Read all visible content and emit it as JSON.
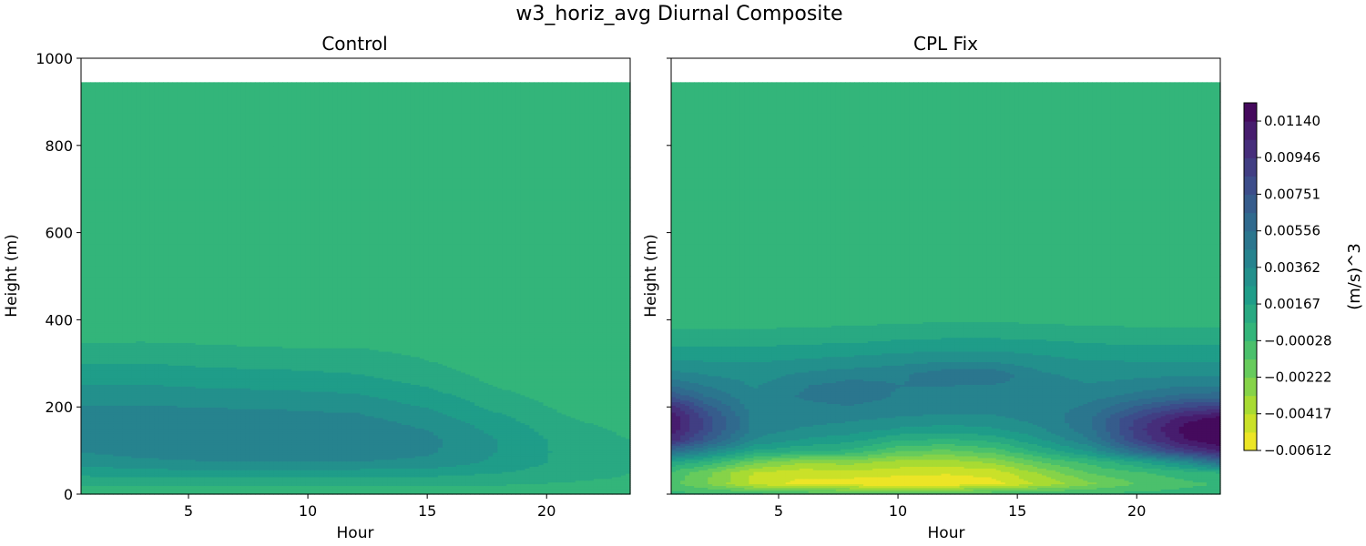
{
  "figure": {
    "title": "w3_horiz_avg Diurnal Composite",
    "colorbar_label": "(m/s)^3"
  },
  "chart_data": {
    "type": "heatmap",
    "colormap": "viridis_r",
    "colormap_stops": [
      "#fde725",
      "#b5de2b",
      "#6ece58",
      "#35b779",
      "#1f9e89",
      "#26828e",
      "#31688e",
      "#3e4989",
      "#482878",
      "#440154"
    ],
    "colorbar": {
      "min": -0.00612,
      "max": 0.01237,
      "tick_values": [
        -0.00612,
        -0.00417,
        -0.00222,
        -0.00028,
        0.00167,
        0.00362,
        0.00556,
        0.00751,
        0.00946,
        0.0114
      ],
      "tick_labels": [
        "−0.00612",
        "−0.00417",
        "−0.00222",
        "−0.00028",
        "0.00167",
        "0.00362",
        "0.00556",
        "0.00751",
        "0.00946",
        "0.01140"
      ]
    },
    "panels": [
      {
        "title": "Control",
        "xlabel": "Hour",
        "ylabel": "Height (m)",
        "xlim": [
          0.5,
          23.5
        ],
        "ylim": [
          0,
          1000
        ],
        "x_ticks": [
          5,
          10,
          15,
          20
        ],
        "y_ticks": [
          0,
          200,
          400,
          600,
          800,
          1000
        ],
        "data_top": 945,
        "x": [
          0.5,
          3,
          6,
          9,
          12,
          15,
          18,
          21,
          23.5
        ],
        "y": [
          0,
          25,
          50,
          75,
          100,
          125,
          150,
          175,
          200,
          225,
          250,
          275,
          300,
          325,
          350,
          375,
          400,
          500,
          700,
          945
        ],
        "z": [
          [
            0.0001,
            0.0001,
            0.0001,
            0.0001,
            0.0001,
            0.0001,
            0.0001,
            0.0001,
            0.0001
          ],
          [
            0.0009,
            0.0009,
            0.0009,
            0.0009,
            0.0009,
            0.0009,
            0.0008,
            0.0006,
            0.0005
          ],
          [
            0.002,
            0.0022,
            0.0023,
            0.0023,
            0.0022,
            0.0021,
            0.0017,
            0.0011,
            0.0007
          ],
          [
            0.003,
            0.0034,
            0.0036,
            0.0036,
            0.0036,
            0.0034,
            0.0024,
            0.0013,
            0.0008
          ],
          [
            0.0037,
            0.004,
            0.0041,
            0.0041,
            0.0041,
            0.0038,
            0.0026,
            0.0013,
            0.0008
          ],
          [
            0.004,
            0.0043,
            0.0042,
            0.0043,
            0.0043,
            0.0039,
            0.0026,
            0.0012,
            0.0007
          ],
          [
            0.004,
            0.0042,
            0.0041,
            0.0042,
            0.0042,
            0.0036,
            0.0023,
            0.001,
            0.0005
          ],
          [
            0.0041,
            0.0041,
            0.004,
            0.004,
            0.0039,
            0.0031,
            0.0019,
            0.0007,
            0.0003
          ],
          [
            0.0037,
            0.0037,
            0.0036,
            0.0035,
            0.0033,
            0.0026,
            0.0014,
            0.0004,
            0.0
          ],
          [
            0.0033,
            0.0033,
            0.0031,
            0.003,
            0.0028,
            0.0021,
            0.001,
            0.0002,
            -0.0001
          ],
          [
            0.0027,
            0.0027,
            0.0025,
            0.0024,
            0.0022,
            0.0016,
            0.0006,
            0.0,
            -0.0002
          ],
          [
            0.0022,
            0.0022,
            0.002,
            0.0019,
            0.0017,
            0.0012,
            0.0003,
            -0.0001,
            -0.0002
          ],
          [
            0.0017,
            0.0017,
            0.0015,
            0.0014,
            0.0013,
            0.0008,
            0.0001,
            -0.0002,
            -0.0002
          ],
          [
            0.0012,
            0.0012,
            0.001,
            0.0009,
            0.0009,
            0.0005,
            -0.0001,
            -0.0002,
            -0.0002
          ],
          [
            0.0006,
            0.0007,
            0.0006,
            0.0005,
            0.0005,
            0.0002,
            -0.0002,
            -0.0002,
            -0.0002
          ],
          [
            0.0002,
            0.0002,
            0.0002,
            0.0002,
            0.0001,
            0.0,
            -0.0002,
            -0.0002,
            -0.0002
          ],
          [
            -0.0001,
            -0.0001,
            -0.0001,
            -0.0001,
            -0.0001,
            -0.0001,
            -0.0002,
            -0.0002,
            -0.0002
          ],
          [
            -0.0002,
            -0.0002,
            -0.0002,
            -0.0002,
            -0.0002,
            -0.0002,
            -0.0002,
            -0.0002,
            -0.0002
          ],
          [
            -0.0002,
            -0.0002,
            -0.0002,
            -0.0002,
            -0.0002,
            -0.0002,
            -0.0002,
            -0.0002,
            -0.0002
          ],
          [
            -0.0002,
            -0.0002,
            -0.0002,
            -0.0002,
            -0.0002,
            -0.0002,
            -0.0002,
            -0.0002,
            -0.0002
          ]
        ]
      },
      {
        "title": "CPL Fix",
        "xlabel": "Hour",
        "ylabel": "Height (m)",
        "xlim": [
          0.5,
          23.5
        ],
        "ylim": [
          0,
          1000
        ],
        "x_ticks": [
          5,
          10,
          15,
          20
        ],
        "y_ticks": [
          0,
          200,
          400,
          600,
          800,
          1000
        ],
        "data_top": 945,
        "x": [
          0.5,
          2,
          4,
          6,
          8,
          10,
          12,
          14,
          16,
          18,
          20,
          22,
          23.5
        ],
        "y": [
          0,
          25,
          50,
          75,
          100,
          125,
          150,
          175,
          200,
          225,
          250,
          275,
          300,
          325,
          350,
          375,
          400,
          500,
          700,
          945
        ],
        "z": [
          [
            0.0001,
            0.0001,
            0.0001,
            0.0001,
            0.0001,
            0.0001,
            0.0001,
            0.0001,
            0.0001,
            0.0001,
            0.0001,
            0.0001,
            0.0001
          ],
          [
            -0.001,
            -0.0022,
            -0.0045,
            -0.0055,
            -0.0058,
            -0.006,
            -0.006,
            -0.0055,
            -0.004,
            -0.0025,
            -0.0012,
            -0.0005,
            -0.0002
          ],
          [
            -0.0005,
            -0.002,
            -0.0043,
            -0.0048,
            -0.0045,
            -0.0048,
            -0.005,
            -0.0048,
            -0.003,
            -0.0012,
            -0.0004,
            0.0002,
            0.0008
          ],
          [
            0.0015,
            0.0005,
            -0.0018,
            -0.003,
            -0.0028,
            -0.0035,
            -0.0036,
            -0.003,
            -0.0012,
            0.0,
            0.0015,
            0.0035,
            0.006
          ],
          [
            0.006,
            0.004,
            0.0015,
            0.0008,
            0.0005,
            -0.0012,
            -0.0015,
            -0.0008,
            0.001,
            0.0028,
            0.006,
            0.009,
            0.0105
          ],
          [
            0.01,
            0.007,
            0.0035,
            0.0025,
            0.002,
            0.0008,
            0.0005,
            0.001,
            0.0025,
            0.0045,
            0.0085,
            0.0113,
            0.0123
          ],
          [
            0.011,
            0.008,
            0.0042,
            0.0035,
            0.0032,
            0.0025,
            0.0022,
            0.0025,
            0.0035,
            0.0052,
            0.009,
            0.0118,
            0.0124
          ],
          [
            0.0112,
            0.008,
            0.0043,
            0.004,
            0.0038,
            0.0035,
            0.0033,
            0.0034,
            0.004,
            0.0053,
            0.0085,
            0.011,
            0.0118
          ],
          [
            0.01,
            0.007,
            0.004,
            0.0043,
            0.0045,
            0.0042,
            0.0041,
            0.004,
            0.0041,
            0.0048,
            0.0068,
            0.0085,
            0.009
          ],
          [
            0.0075,
            0.0055,
            0.0038,
            0.0047,
            0.005,
            0.0045,
            0.0044,
            0.0043,
            0.0041,
            0.0042,
            0.005,
            0.006,
            0.0062
          ],
          [
            0.0055,
            0.0045,
            0.0035,
            0.0045,
            0.005,
            0.0046,
            0.0046,
            0.0045,
            0.004,
            0.0037,
            0.004,
            0.0045,
            0.0045
          ],
          [
            0.004,
            0.0036,
            0.0032,
            0.0038,
            0.0042,
            0.0044,
            0.0053,
            0.0053,
            0.0038,
            0.0033,
            0.0034,
            0.0035,
            0.0035
          ],
          [
            0.0029,
            0.0028,
            0.0027,
            0.003,
            0.0032,
            0.0035,
            0.0038,
            0.0038,
            0.0032,
            0.0028,
            0.0028,
            0.0028,
            0.0028
          ],
          [
            0.0021,
            0.0021,
            0.0021,
            0.0022,
            0.0024,
            0.0026,
            0.0028,
            0.0028,
            0.0025,
            0.0022,
            0.0021,
            0.0021,
            0.0021
          ],
          [
            0.0014,
            0.0014,
            0.0014,
            0.0015,
            0.0016,
            0.0018,
            0.0019,
            0.0019,
            0.0018,
            0.0016,
            0.0015,
            0.0015,
            0.0015
          ],
          [
            0.0008,
            0.0008,
            0.0008,
            0.0009,
            0.001,
            0.0011,
            0.0012,
            0.0012,
            0.0011,
            0.001,
            0.0009,
            0.0009,
            0.0009
          ],
          [
            0.0002,
            0.0002,
            0.0003,
            0.0003,
            0.0004,
            0.0005,
            0.0006,
            0.0006,
            0.0005,
            0.0004,
            0.0004,
            0.0004,
            0.0004
          ],
          [
            -0.0002,
            -0.0002,
            -0.0002,
            -0.0002,
            -0.0002,
            -0.0002,
            -0.0002,
            -0.0002,
            -0.0002,
            -0.0002,
            -0.0002,
            -0.0002,
            -0.0002
          ],
          [
            -0.0002,
            -0.0002,
            -0.0002,
            -0.0002,
            -0.0002,
            -0.0002,
            -0.0002,
            -0.0002,
            -0.0002,
            -0.0002,
            -0.0002,
            -0.0002,
            -0.0002
          ],
          [
            -0.0002,
            -0.0002,
            -0.0002,
            -0.0002,
            -0.0002,
            -0.0002,
            -0.0002,
            -0.0002,
            -0.0002,
            -0.0002,
            -0.0002,
            -0.0002,
            -0.0002
          ]
        ]
      }
    ]
  }
}
